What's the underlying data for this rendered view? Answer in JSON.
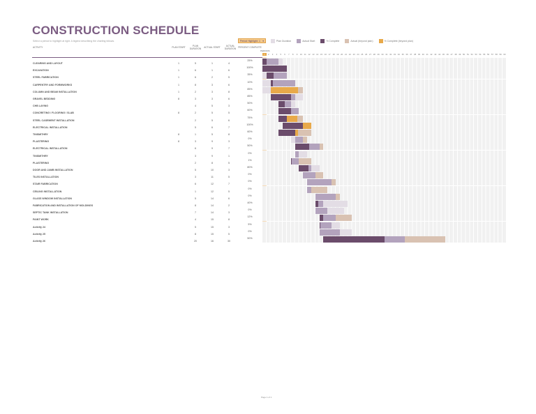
{
  "title": "CONSTRUCTION SCHEDULE",
  "subtitle": "Select a period to highlight at right. A legend describing the charting follows.",
  "period_highlight": {
    "label": "Period Highlight:",
    "value": "1"
  },
  "legend": [
    {
      "label": "Plan Duration",
      "color": "#e3dde5"
    },
    {
      "label": "Actual Start",
      "color": "#b3a3bd"
    },
    {
      "label": "% Complete",
      "color": "#6b4c6b"
    },
    {
      "label": "Actual (beyond plan)",
      "color": "#d9c2b2"
    },
    {
      "label": "% Complete (beyond plan)",
      "color": "#e8a94a"
    }
  ],
  "columns": {
    "activity": "ACTIVITY",
    "plan_start": "PLAN START",
    "plan_duration": "PLAN DURATION",
    "actual_start": "ACTUAL START",
    "actual_duration": "ACTUAL DURATION",
    "percent": "PERCENT COMPLETE",
    "periods": "PERIODS"
  },
  "periods": [
    1,
    2,
    3,
    4,
    5,
    6,
    7,
    8,
    9,
    10,
    11,
    12,
    13,
    14,
    15,
    16,
    17,
    18,
    19,
    20,
    21,
    22,
    23,
    24,
    25,
    26,
    27,
    28,
    29,
    30,
    31,
    32,
    33,
    34,
    35,
    36,
    37,
    38,
    39,
    40,
    41,
    42,
    43,
    44,
    45,
    46,
    47,
    48,
    49,
    50,
    51,
    52,
    53,
    54,
    55,
    56,
    57,
    58,
    59,
    60
  ],
  "rows": [
    {
      "activity": "CLEARING AND LAYOUT",
      "plan_start": "1",
      "plan_duration": "5",
      "actual_start": "1",
      "actual_duration": "4",
      "percent": "25%"
    },
    {
      "activity": "EXCAVATION",
      "plan_start": "1",
      "plan_duration": "6",
      "actual_start": "1",
      "actual_duration": "6",
      "percent": "100%"
    },
    {
      "activity": "STEEL FABRICATION",
      "plan_start": "1",
      "plan_duration": "6",
      "actual_start": "2",
      "actual_duration": "5",
      "percent": "35%"
    },
    {
      "activity": "CARPENTRY AND FORMWORKS",
      "plan_start": "1",
      "plan_duration": "8",
      "actual_start": "3",
      "actual_duration": "6",
      "percent": "10%"
    },
    {
      "activity": "COLUMN AND BEAM INSTALLATION",
      "plan_start": "1",
      "plan_duration": "2",
      "actual_start": "3",
      "actual_duration": "8",
      "percent": "85%"
    },
    {
      "activity": "GRAVEL BEDDING",
      "plan_start": "8",
      "plan_duration": "3",
      "actual_start": "3",
      "actual_duration": "6",
      "percent": "85%"
    },
    {
      "activity": "CHB LAYING",
      "plan_start": "",
      "plan_duration": "4",
      "actual_start": "5",
      "actual_duration": "3",
      "percent": "50%"
    },
    {
      "activity": "CONCRETING / FLOORING / SLAB",
      "plan_start": "8",
      "plan_duration": "2",
      "actual_start": "5",
      "actual_duration": "5",
      "percent": "60%"
    },
    {
      "activity": "STEEL CASEMENT INSTALLATION",
      "plan_start": "",
      "plan_duration": "2",
      "actual_start": "5",
      "actual_duration": "6",
      "percent": "75%"
    },
    {
      "activity": "ELECTRICAL INSTALLATION",
      "plan_start": "",
      "plan_duration": "5",
      "actual_start": "6",
      "actual_duration": "7",
      "percent": "100%"
    },
    {
      "activity": "TINSMITHRY",
      "plan_start": "8",
      "plan_duration": "1",
      "actual_start": "5",
      "actual_duration": "8",
      "percent": "60%"
    },
    {
      "activity": "PLASTERING",
      "plan_start": "8",
      "plan_duration": "3",
      "actual_start": "9",
      "actual_duration": "3",
      "percent": "0%"
    },
    {
      "activity": "ELECTRICAL INSTALLATION",
      "plan_start": "",
      "plan_duration": "6",
      "actual_start": "9",
      "actual_duration": "7",
      "percent": "50%"
    },
    {
      "activity": "TINSMITHRY",
      "plan_start": "",
      "plan_duration": "3",
      "actual_start": "9",
      "actual_duration": "1",
      "percent": "0%"
    },
    {
      "activity": "PLASTERING",
      "plan_start": "",
      "plan_duration": "2",
      "actual_start": "8",
      "actual_duration": "5",
      "percent": "1%"
    },
    {
      "activity": "DOOR AND JAMB INSTALLATION",
      "plan_start": "",
      "plan_duration": "5",
      "actual_start": "10",
      "actual_duration": "3",
      "percent": "80%"
    },
    {
      "activity": "TILES INSTALLATION",
      "plan_start": "",
      "plan_duration": "3",
      "actual_start": "11",
      "actual_duration": "5",
      "percent": "0%"
    },
    {
      "activity": "STAIR FABRICATION",
      "plan_start": "",
      "plan_duration": "6",
      "actual_start": "12",
      "actual_duration": "7",
      "percent": "0%"
    },
    {
      "activity": "CEILING INSTALLATION",
      "plan_start": "",
      "plan_duration": "1",
      "actual_start": "12",
      "actual_duration": "5",
      "percent": "0%"
    },
    {
      "activity": "GLASS WINDOW INSTALLATION",
      "plan_start": "",
      "plan_duration": "5",
      "actual_start": "14",
      "actual_duration": "6",
      "percent": "0%"
    },
    {
      "activity": "FABRICATION AND INSTALLATION OF MOLDINGS",
      "plan_start": "",
      "plan_duration": "8",
      "actual_start": "14",
      "actual_duration": "2",
      "percent": "40%"
    },
    {
      "activity": "SEPTIC TANK INSTALLATION",
      "plan_start": "",
      "plan_duration": "7",
      "actual_start": "14",
      "actual_duration": "3",
      "percent": "0%"
    },
    {
      "activity": "PAINT WORK",
      "plan_start": "",
      "plan_duration": "4",
      "actual_start": "15",
      "actual_duration": "8",
      "percent": "12%"
    },
    {
      "activity": "Activity 24",
      "plan_start": "",
      "plan_duration": "5",
      "actual_start": "15",
      "actual_duration": "3",
      "percent": "5%"
    },
    {
      "activity": "Activity 25",
      "plan_start": "",
      "plan_duration": "8",
      "actual_start": "15",
      "actual_duration": "5",
      "percent": "0%"
    },
    {
      "activity": "Activity 26",
      "plan_start": "",
      "plan_duration": "20",
      "actual_start": "16",
      "actual_duration": "30",
      "percent": "50%"
    }
  ],
  "footer": "Page 1 of 1"
}
